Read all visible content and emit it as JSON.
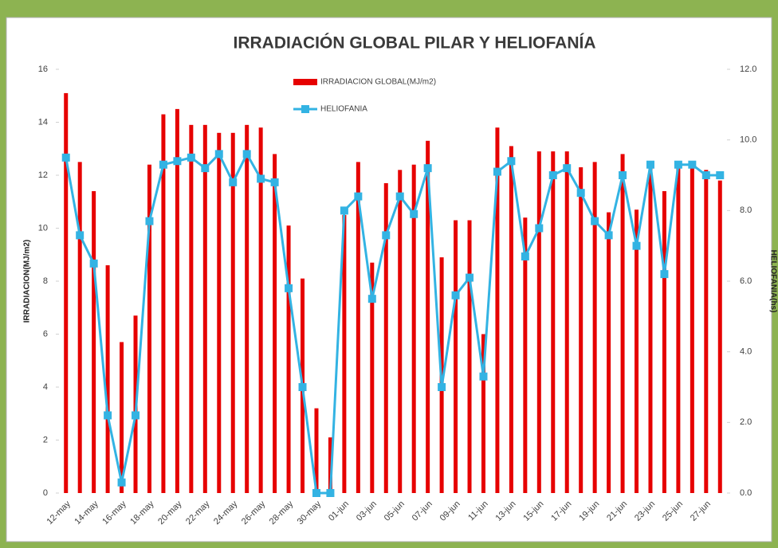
{
  "chart_data": {
    "type": "bar_line",
    "title": "IRRADIACIÓN  GLOBAL PILAR Y HELIOFANÍA",
    "y_label": "IRRADIACION(MJ/m2)",
    "y2_label": "HELIOFANIA(hs)",
    "categories": [
      "12-may",
      null,
      "14-may",
      null,
      "16-may",
      null,
      "18-may",
      null,
      "20-may",
      null,
      "22-may",
      null,
      "24-may",
      null,
      "26-may",
      null,
      "28-may",
      null,
      "30-may",
      null,
      "01-jun",
      null,
      "03-jun",
      null,
      "05-jun",
      null,
      "07-jun",
      null,
      "09-jun",
      null,
      "11-jun",
      null,
      "13-jun",
      null,
      "15-jun",
      null,
      "17-jun",
      null,
      "19-jun",
      null,
      "21-jun",
      null,
      "23-jun",
      null,
      "25-jun",
      null,
      "27-jun",
      null
    ],
    "series": [
      {
        "name": "IRRADIACION GLOBAL(MJ/m2)",
        "color": "#e60000",
        "kind": "bar",
        "axis": "y",
        "values": [
          15.1,
          12.5,
          11.4,
          8.6,
          5.7,
          6.7,
          12.4,
          14.3,
          14.5,
          13.9,
          13.9,
          13.6,
          13.6,
          13.9,
          13.8,
          12.8,
          10.1,
          8.1,
          3.2,
          2.1,
          10.5,
          12.5,
          8.7,
          11.7,
          12.2,
          12.4,
          13.3,
          8.9,
          10.3,
          10.3,
          6.0,
          13.8,
          13.1,
          10.4,
          12.9,
          12.9,
          12.9,
          12.3,
          12.5,
          10.6,
          12.8,
          10.7,
          12.4,
          11.4,
          12.4,
          12.3,
          12.2,
          11.8
        ]
      },
      {
        "name": "HELIOFANIA",
        "color": "#33b3e3",
        "kind": "line",
        "axis": "y2",
        "values": [
          9.5,
          7.3,
          6.5,
          2.2,
          0.3,
          2.2,
          7.7,
          9.3,
          9.4,
          9.5,
          9.2,
          9.6,
          8.8,
          9.6,
          8.9,
          8.8,
          5.8,
          3.0,
          0.0,
          0.0,
          8.0,
          8.4,
          5.5,
          7.3,
          8.4,
          7.9,
          9.2,
          3.0,
          5.6,
          6.1,
          3.3,
          9.1,
          9.4,
          6.7,
          7.5,
          9.0,
          9.2,
          8.5,
          7.7,
          7.3,
          9.0,
          7.0,
          9.3,
          6.2,
          9.3,
          9.3,
          9.0,
          9.0
        ]
      }
    ],
    "ylim": [
      0,
      16
    ],
    "yticks": [
      0,
      2,
      4,
      6,
      8,
      10,
      12,
      14,
      16
    ],
    "y2lim": [
      0,
      12
    ],
    "y2ticks": [
      {
        "value": 0,
        "label": "0.0"
      },
      {
        "value": 2,
        "label": "2.0"
      },
      {
        "value": 4,
        "label": "4.0"
      },
      {
        "value": 6,
        "label": "6.0"
      },
      {
        "value": 8,
        "label": "8.0"
      },
      {
        "value": 10,
        "label": "10.0"
      },
      {
        "value": 12,
        "label": "12.0"
      }
    ],
    "legend": "top"
  }
}
